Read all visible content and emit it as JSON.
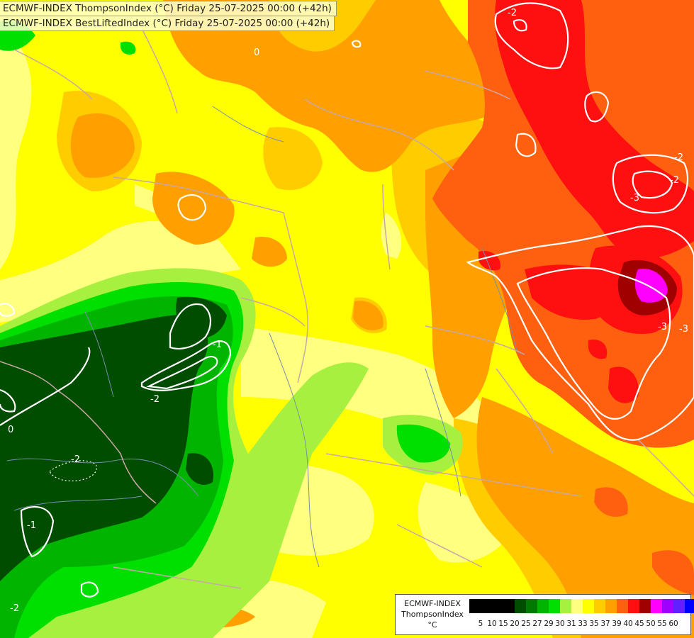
{
  "titles": {
    "line1": "ECMWF-INDEX ThompsonIndex (°C) Friday 25-07-2025 00:00 (+42h)",
    "line2": "ECMWF-INDEX BestLiftedIndex (°C) Friday 25-07-2025 00:00 (+42h)"
  },
  "legend": {
    "model": "ECMWF-INDEX",
    "parameter": "ThompsonIndex",
    "unit": "°C",
    "ticks": [
      "5",
      "10",
      "15",
      "20",
      "25",
      "27",
      "29",
      "30",
      "31",
      "33",
      "35",
      "37",
      "39",
      "40",
      "45",
      "50",
      "55",
      "60"
    ],
    "colors": [
      "#000000",
      "#000000",
      "#000000",
      "#000000",
      "#004d00",
      "#007a00",
      "#00b400",
      "#00e000",
      "#a8f040",
      "#ffff80",
      "#ffff00",
      "#ffcc00",
      "#ffa000",
      "#ff6010",
      "#ff1010",
      "#a00000",
      "#ff00ff",
      "#a000ff",
      "#6020ff",
      "#0000ff"
    ]
  },
  "contour_labels": [
    "-2",
    "-3",
    "-2",
    "-3",
    "-3",
    "-2",
    "0",
    "-1",
    "-2",
    "-1",
    "-2",
    "-2",
    "0"
  ],
  "colors": {
    "coast_line": "#c9a7a7",
    "contour_line": "#ffffff",
    "river_line": "#7a8fa6"
  }
}
